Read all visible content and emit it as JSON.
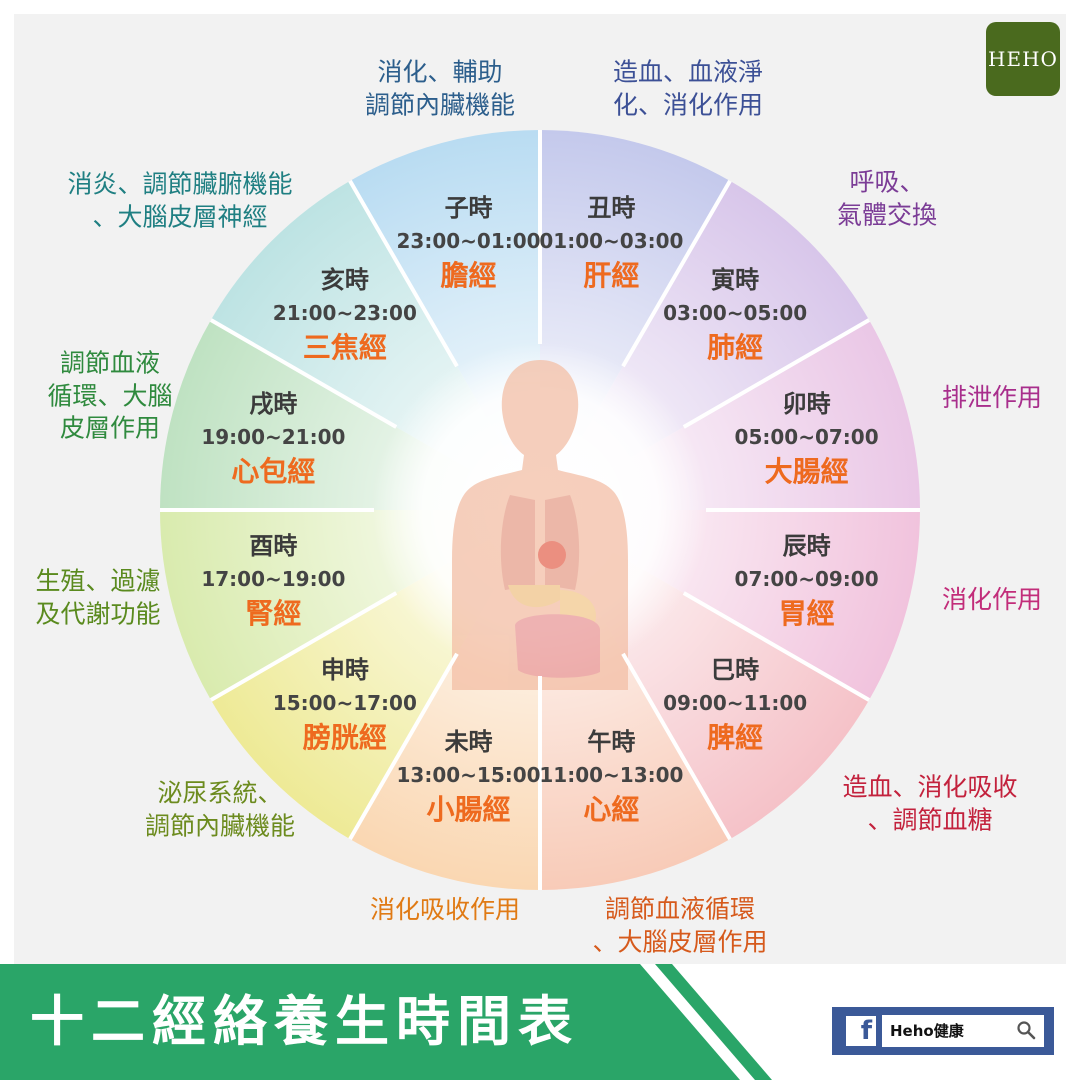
{
  "title": "十二經絡養生時間表",
  "brand_logo": "HEHO",
  "facebook": {
    "page_name": "Heho健康",
    "icon": "facebook-f-icon",
    "search_icon": "search-icon"
  },
  "colors": {
    "accent_green": "#2aa568",
    "logo_green": "#4a6a1e",
    "meridian_orange": "#ee6a1f",
    "fb_blue": "#3b5998"
  },
  "sectors": [
    {
      "hour": "子時",
      "time": "23:00~01:00",
      "meridian": "膽經",
      "function": [
        "消化、輔助",
        "調節內臟機能"
      ],
      "color": "#b9dcf2",
      "text_color": "#2c5e8c"
    },
    {
      "hour": "丑時",
      "time": "01:00~03:00",
      "meridian": "肝經",
      "function": [
        "造血、血液淨",
        "化、消化作用"
      ],
      "color": "#c4c9ec",
      "text_color": "#3c5096"
    },
    {
      "hour": "寅時",
      "time": "03:00~05:00",
      "meridian": "肺經",
      "function": [
        "呼吸、",
        "氣體交換"
      ],
      "color": "#d8c6ea",
      "text_color": "#7b3c96"
    },
    {
      "hour": "卯時",
      "time": "05:00~07:00",
      "meridian": "大腸經",
      "function": [
        "排泄作用"
      ],
      "color": "#eac7e6",
      "text_color": "#a82e8c"
    },
    {
      "hour": "辰時",
      "time": "07:00~09:00",
      "meridian": "胃經",
      "function": [
        "消化作用"
      ],
      "color": "#f1c3dd",
      "text_color": "#c22d7a"
    },
    {
      "hour": "巳時",
      "time": "09:00~11:00",
      "meridian": "脾經",
      "function": [
        "造血、消化吸收",
        "、調節血糖"
      ],
      "color": "#f5c2c8",
      "text_color": "#c3223d"
    },
    {
      "hour": "午時",
      "time": "11:00~13:00",
      "meridian": "心經",
      "function": [
        "調節血液循環",
        "、大腦皮層作用"
      ],
      "color": "#f8cbb8",
      "text_color": "#d65a1c"
    },
    {
      "hour": "未時",
      "time": "13:00~15:00",
      "meridian": "小腸經",
      "function": [
        "消化吸收作用"
      ],
      "color": "#fad7b2",
      "text_color": "#e07a14"
    },
    {
      "hour": "申時",
      "time": "15:00~17:00",
      "meridian": "膀胱經",
      "function": [
        "泌尿系統、",
        "調節內臟機能"
      ],
      "color": "#eeea96",
      "text_color": "#6c8b1e"
    },
    {
      "hour": "酉時",
      "time": "17:00~19:00",
      "meridian": "腎經",
      "function": [
        "生殖、過濾",
        "及代謝功能"
      ],
      "color": "#d9ebae",
      "text_color": "#5a8a1e"
    },
    {
      "hour": "戌時",
      "time": "19:00~21:00",
      "meridian": "心包經",
      "function": [
        "調節血液",
        "循環、大腦",
        "皮層作用"
      ],
      "color": "#bfe2c2",
      "text_color": "#2f8a3e"
    },
    {
      "hour": "亥時",
      "time": "21:00~23:00",
      "meridian": "三焦經",
      "function": [
        "消炎、調節臟腑機能",
        "、大腦皮層神經"
      ],
      "color": "#bde3e3",
      "text_color": "#1f7f82"
    }
  ]
}
